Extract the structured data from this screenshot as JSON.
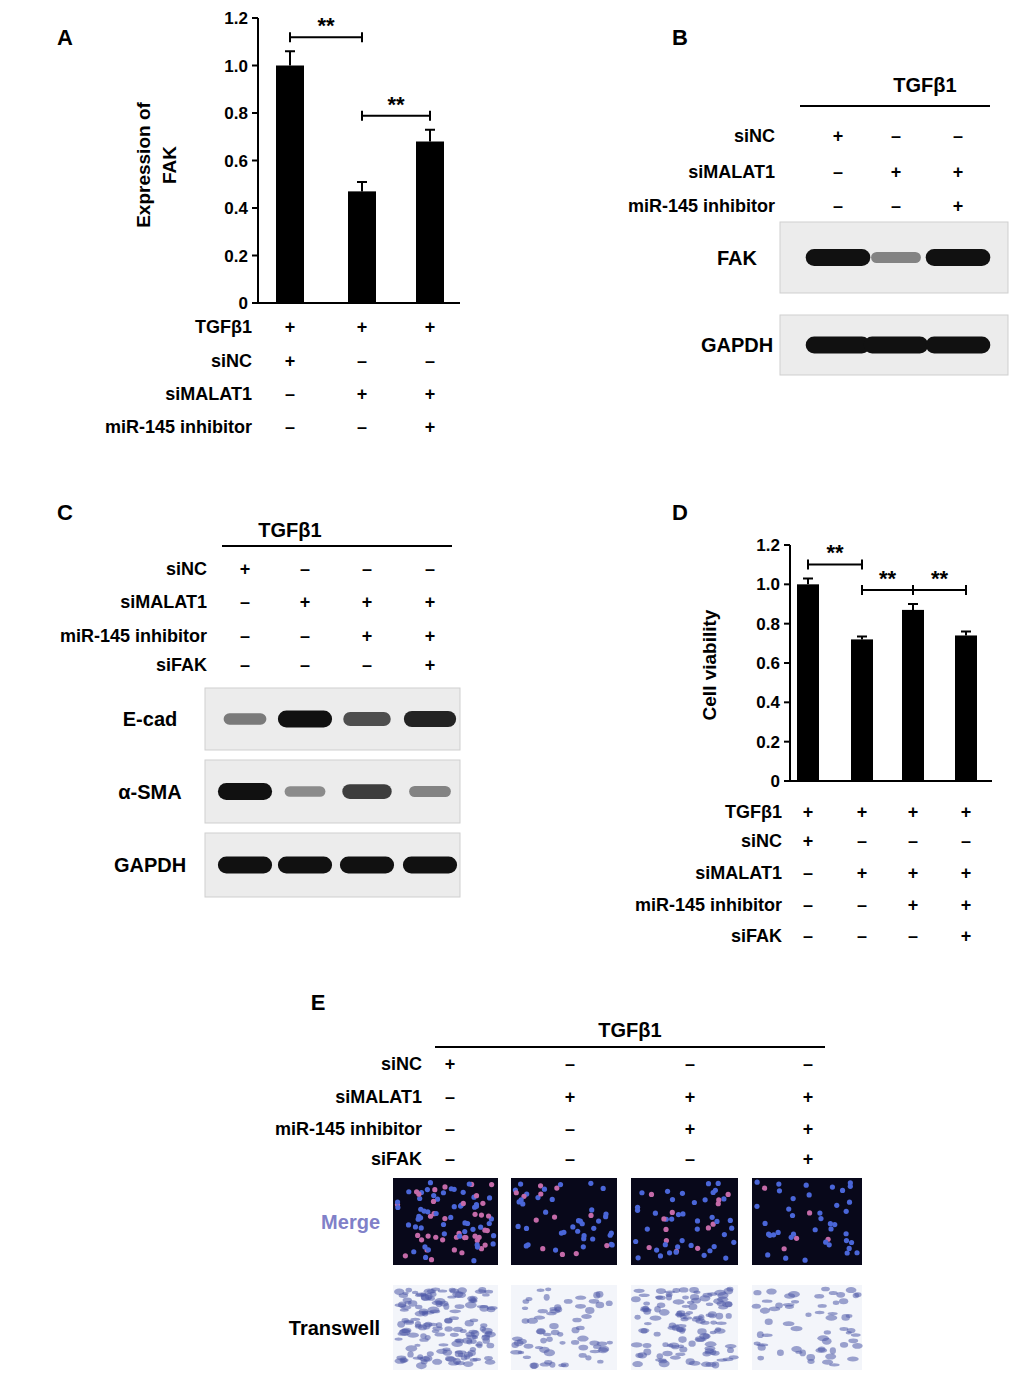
{
  "chart_data": [
    {
      "panel": "A",
      "type": "bar",
      "y_label": [
        "Expression of",
        "FAK"
      ],
      "categories": [
        null,
        null,
        null
      ],
      "values": [
        1.0,
        0.47,
        0.68
      ],
      "errors": [
        0.06,
        0.04,
        0.05
      ],
      "color": "#000000",
      "ylim": [
        0,
        1.2
      ],
      "yticks": [
        0,
        0.2,
        0.4,
        0.6,
        0.8,
        {
          "value": 1,
          "label": "1.0"
        },
        1.2
      ],
      "conditions": [
        {
          "name": "TGFβ1",
          "signs": [
            "+",
            "+",
            "+"
          ]
        },
        {
          "name": "siNC",
          "signs": [
            "+",
            "–",
            "–"
          ]
        },
        {
          "name": "siMALAT1",
          "signs": [
            "–",
            "+",
            "+"
          ]
        },
        {
          "name": "miR-145 inhibitor",
          "signs": [
            "–",
            "–",
            "+"
          ]
        }
      ],
      "significance": [
        {
          "pair": [
            0,
            1
          ],
          "label": "**"
        },
        {
          "pair": [
            1,
            2
          ],
          "label": "**"
        }
      ]
    },
    {
      "panel": "B",
      "type": "blot",
      "header": "TGFβ1",
      "conditions": [
        {
          "name": "siNC",
          "signs": [
            "+",
            "–",
            "–"
          ]
        },
        {
          "name": "siMALAT1",
          "signs": [
            "–",
            "+",
            "+"
          ]
        },
        {
          "name": "miR-145 inhibitor",
          "signs": [
            "–",
            "–",
            "+"
          ]
        }
      ],
      "rows": [
        {
          "label": "FAK",
          "intensity": [
            1,
            0.35,
            1
          ]
        },
        {
          "label": "GAPDH",
          "intensity": [
            1,
            1,
            1
          ]
        }
      ]
    },
    {
      "panel": "C",
      "type": "blot",
      "header": "TGFβ1",
      "conditions": [
        {
          "name": "siNC",
          "signs": [
            "+",
            "–",
            "–",
            "–"
          ]
        },
        {
          "name": "siMALAT1",
          "signs": [
            "–",
            "+",
            "+",
            "+"
          ]
        },
        {
          "name": "miR-145 inhibitor",
          "signs": [
            "–",
            "–",
            "+",
            "+"
          ]
        },
        {
          "name": "siFAK",
          "signs": [
            "–",
            "–",
            "–",
            "+"
          ]
        }
      ],
      "rows": [
        {
          "label": "E-cad",
          "intensity": [
            0.4,
            1,
            0.65,
            0.9
          ]
        },
        {
          "label": "α-SMA",
          "intensity": [
            1,
            0.3,
            0.75,
            0.35
          ]
        },
        {
          "label": "GAPDH",
          "intensity": [
            1,
            1,
            1,
            1
          ]
        }
      ]
    },
    {
      "panel": "D",
      "type": "bar",
      "y_label": [
        "Cell viability"
      ],
      "categories": [
        null,
        null,
        null,
        null
      ],
      "values": [
        1.0,
        0.72,
        0.87,
        0.74
      ],
      "errors": [
        0.03,
        0.015,
        0.03,
        0.02
      ],
      "color": "#000000",
      "ylim": [
        0,
        1.2
      ],
      "yticks": [
        0,
        0.2,
        0.4,
        0.6,
        0.8,
        {
          "value": 1,
          "label": "1.0"
        },
        1.2
      ],
      "conditions": [
        {
          "name": "TGFβ1",
          "signs": [
            "+",
            "+",
            "+",
            "+"
          ]
        },
        {
          "name": "siNC",
          "signs": [
            "+",
            "–",
            "–",
            "–"
          ]
        },
        {
          "name": "siMALAT1",
          "signs": [
            "–",
            "+",
            "+",
            "+"
          ]
        },
        {
          "name": "miR-145 inhibitor",
          "signs": [
            "–",
            "–",
            "+",
            "+"
          ]
        },
        {
          "name": "siFAK",
          "signs": [
            "–",
            "–",
            "–",
            "+"
          ]
        }
      ],
      "significance": [
        {
          "pair": [
            0,
            1
          ],
          "label": "**"
        },
        {
          "pair": [
            1,
            2
          ],
          "label": "**"
        },
        {
          "pair": [
            2,
            3
          ],
          "label": "**"
        }
      ]
    },
    {
      "panel": "E",
      "type": "image",
      "header": "TGFβ1",
      "conditions": [
        {
          "name": "siNC",
          "signs": [
            "+",
            "–",
            "–",
            "–"
          ]
        },
        {
          "name": "siMALAT1",
          "signs": [
            "–",
            "+",
            "+",
            "+"
          ]
        },
        {
          "name": "miR-145 inhibitor",
          "signs": [
            "–",
            "–",
            "+",
            "+"
          ]
        },
        {
          "name": "siFAK",
          "signs": [
            "–",
            "–",
            "–",
            "+"
          ]
        }
      ],
      "rows": [
        {
          "label": "Merge",
          "color": "#8080c8",
          "density": [
            1,
            0.55,
            0.6,
            0.5
          ]
        },
        {
          "label": "Transwell",
          "color": "#000000",
          "density": [
            1,
            0.45,
            0.8,
            0.4
          ]
        }
      ]
    }
  ]
}
